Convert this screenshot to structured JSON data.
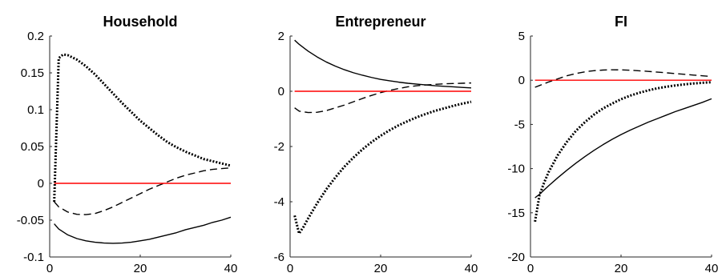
{
  "chart_data": [
    {
      "type": "line",
      "title": "Household",
      "xlabel": "",
      "ylabel": "",
      "xlim": [
        0,
        40
      ],
      "ylim": [
        -0.1,
        0.2
      ],
      "xticks": [
        0,
        20,
        40
      ],
      "xtick_labels": [
        "0",
        "20",
        "40"
      ],
      "yticks": [
        -0.1,
        -0.05,
        0,
        0.05,
        0.1,
        0.15,
        0.2
      ],
      "ytick_labels": [
        "-0.1",
        "-0.05",
        "0",
        "0.05",
        "0.1",
        "0.15",
        "0.2"
      ],
      "grid": false,
      "series": [
        {
          "style": "solid",
          "color": "#000000",
          "x": [
            1,
            2,
            4,
            6,
            8,
            10,
            12,
            14,
            16,
            18,
            20,
            22,
            24,
            26,
            28,
            30,
            32,
            34,
            36,
            38,
            40
          ],
          "y": [
            -0.055,
            -0.062,
            -0.07,
            -0.075,
            -0.078,
            -0.08,
            -0.081,
            -0.0815,
            -0.081,
            -0.08,
            -0.078,
            -0.076,
            -0.073,
            -0.07,
            -0.067,
            -0.063,
            -0.06,
            -0.057,
            -0.053,
            -0.05,
            -0.046
          ]
        },
        {
          "style": "dashed",
          "color": "#000000",
          "x": [
            1,
            2,
            4,
            6,
            8,
            10,
            12,
            14,
            16,
            18,
            20,
            22,
            24,
            26,
            28,
            30,
            32,
            34,
            36,
            38,
            40
          ],
          "y": [
            -0.025,
            -0.032,
            -0.039,
            -0.042,
            -0.0425,
            -0.041,
            -0.037,
            -0.032,
            -0.026,
            -0.02,
            -0.014,
            -0.008,
            -0.003,
            0.002,
            0.007,
            0.011,
            0.014,
            0.017,
            0.019,
            0.02,
            0.021
          ]
        },
        {
          "style": "dotted",
          "color": "#000000",
          "x": [
            1,
            2,
            3,
            4,
            6,
            8,
            10,
            12,
            14,
            16,
            18,
            20,
            22,
            24,
            26,
            28,
            30,
            32,
            34,
            36,
            38,
            40
          ],
          "y": [
            -0.025,
            0.17,
            0.175,
            0.174,
            0.168,
            0.159,
            0.148,
            0.135,
            0.122,
            0.109,
            0.097,
            0.085,
            0.075,
            0.065,
            0.056,
            0.049,
            0.043,
            0.038,
            0.033,
            0.03,
            0.027,
            0.024
          ]
        },
        {
          "style": "solid",
          "color": "#ff0000",
          "x": [
            1,
            40
          ],
          "y": [
            0,
            0
          ]
        }
      ]
    },
    {
      "type": "line",
      "title": "Entrepreneur",
      "xlabel": "",
      "ylabel": "",
      "xlim": [
        0,
        40
      ],
      "ylim": [
        -6,
        2
      ],
      "xticks": [
        0,
        20,
        40
      ],
      "xtick_labels": [
        "0",
        "20",
        "40"
      ],
      "yticks": [
        -6,
        -4,
        -2,
        0,
        2
      ],
      "ytick_labels": [
        "-6",
        "-4",
        "-2",
        "0",
        "2"
      ],
      "grid": false,
      "series": [
        {
          "style": "solid",
          "color": "#000000",
          "x": [
            1,
            2,
            4,
            6,
            8,
            10,
            12,
            14,
            16,
            18,
            20,
            22,
            24,
            26,
            28,
            30,
            32,
            34,
            36,
            38,
            40
          ],
          "y": [
            1.85,
            1.7,
            1.45,
            1.24,
            1.06,
            0.91,
            0.78,
            0.67,
            0.58,
            0.5,
            0.43,
            0.38,
            0.33,
            0.29,
            0.26,
            0.23,
            0.2,
            0.18,
            0.16,
            0.14,
            0.12
          ]
        },
        {
          "style": "dashed",
          "color": "#000000",
          "x": [
            1,
            2,
            4,
            6,
            8,
            10,
            12,
            14,
            16,
            18,
            20,
            22,
            24,
            26,
            28,
            30,
            32,
            34,
            36,
            38,
            40
          ],
          "y": [
            -0.6,
            -0.72,
            -0.77,
            -0.76,
            -0.7,
            -0.6,
            -0.5,
            -0.38,
            -0.26,
            -0.15,
            -0.05,
            0.03,
            0.1,
            0.16,
            0.2,
            0.23,
            0.25,
            0.27,
            0.28,
            0.29,
            0.3
          ]
        },
        {
          "style": "dotted",
          "color": "#000000",
          "x": [
            1,
            2,
            3,
            4,
            6,
            8,
            10,
            12,
            14,
            16,
            18,
            20,
            22,
            24,
            26,
            28,
            30,
            32,
            34,
            36,
            38,
            40
          ],
          "y": [
            -4.5,
            -5.15,
            -4.9,
            -4.6,
            -4.05,
            -3.55,
            -3.12,
            -2.73,
            -2.4,
            -2.1,
            -1.84,
            -1.61,
            -1.41,
            -1.23,
            -1.08,
            -0.94,
            -0.82,
            -0.71,
            -0.62,
            -0.53,
            -0.45,
            -0.38
          ]
        },
        {
          "style": "solid",
          "color": "#ff0000",
          "x": [
            1,
            40
          ],
          "y": [
            0,
            0
          ]
        }
      ]
    },
    {
      "type": "line",
      "title": "FI",
      "xlabel": "",
      "ylabel": "",
      "xlim": [
        0,
        40
      ],
      "ylim": [
        -20,
        5
      ],
      "xticks": [
        0,
        20,
        40
      ],
      "xtick_labels": [
        "0",
        "20",
        "40"
      ],
      "yticks": [
        -20,
        -15,
        -10,
        -5,
        0,
        5
      ],
      "ytick_labels": [
        "-20",
        "-15",
        "-10",
        "-5",
        "0",
        "5"
      ],
      "grid": false,
      "series": [
        {
          "style": "solid",
          "color": "#000000",
          "x": [
            1,
            2,
            4,
            6,
            8,
            10,
            12,
            14,
            16,
            18,
            20,
            22,
            24,
            26,
            28,
            30,
            32,
            34,
            36,
            38,
            40
          ],
          "y": [
            -13.3,
            -12.9,
            -11.95,
            -11.05,
            -10.2,
            -9.4,
            -8.65,
            -7.95,
            -7.3,
            -6.7,
            -6.15,
            -5.65,
            -5.2,
            -4.75,
            -4.35,
            -3.95,
            -3.55,
            -3.2,
            -2.85,
            -2.5,
            -2.1
          ]
        },
        {
          "style": "dashed",
          "color": "#000000",
          "x": [
            1,
            2,
            4,
            6,
            8,
            10,
            12,
            14,
            16,
            18,
            20,
            22,
            24,
            26,
            28,
            30,
            32,
            34,
            36,
            38,
            40
          ],
          "y": [
            -0.8,
            -0.6,
            -0.2,
            0.15,
            0.5,
            0.75,
            0.95,
            1.08,
            1.15,
            1.18,
            1.17,
            1.13,
            1.07,
            1.0,
            0.92,
            0.84,
            0.75,
            0.67,
            0.58,
            0.5,
            0.42
          ]
        },
        {
          "style": "dotted",
          "color": "#000000",
          "x": [
            1,
            2,
            3,
            4,
            6,
            8,
            10,
            12,
            14,
            16,
            18,
            20,
            22,
            24,
            26,
            28,
            30,
            32,
            34,
            36,
            38,
            40
          ],
          "y": [
            -16.0,
            -13.0,
            -11.6,
            -10.4,
            -8.5,
            -7.0,
            -5.75,
            -4.75,
            -3.9,
            -3.2,
            -2.65,
            -2.15,
            -1.75,
            -1.42,
            -1.15,
            -0.92,
            -0.74,
            -0.59,
            -0.47,
            -0.37,
            -0.29,
            -0.22
          ]
        },
        {
          "style": "solid",
          "color": "#ff0000",
          "x": [
            1,
            40
          ],
          "y": [
            0,
            0
          ]
        }
      ]
    }
  ]
}
